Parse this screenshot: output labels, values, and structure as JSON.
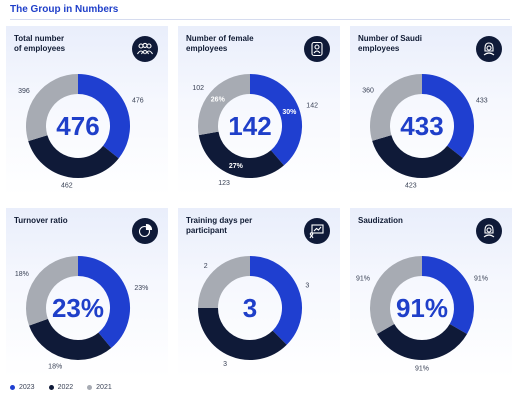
{
  "page": {
    "title": "The Group in Numbers"
  },
  "colors": {
    "2023": "#1f3fd0",
    "2022": "#0f1a38",
    "2021": "#a7abb3"
  },
  "legend": [
    {
      "label": "2023",
      "color": "#1f3fd0"
    },
    {
      "label": "2022",
      "color": "#0f1a38"
    },
    {
      "label": "2021",
      "color": "#a7abb3"
    }
  ],
  "chart_data": [
    {
      "type": "pie",
      "title": "Total number\nof employees",
      "icon": "people-group-icon",
      "center": "476",
      "series": [
        {
          "name": "2023",
          "value": 476,
          "label": "476"
        },
        {
          "name": "2022",
          "value": 462,
          "label": "462"
        },
        {
          "name": "2021",
          "value": 396,
          "label": "396"
        }
      ]
    },
    {
      "type": "pie",
      "title": "Number of female\nemployees",
      "icon": "female-employee-icon",
      "center": "142",
      "series": [
        {
          "name": "2023",
          "value": 142,
          "label": "142",
          "inner": "30%"
        },
        {
          "name": "2022",
          "value": 123,
          "label": "123",
          "inner": "27%"
        },
        {
          "name": "2021",
          "value": 102,
          "label": "102",
          "inner": "26%"
        }
      ]
    },
    {
      "type": "pie",
      "title": "Number of Saudi\nemployees",
      "icon": "saudi-employee-icon",
      "center": "433",
      "series": [
        {
          "name": "2023",
          "value": 433,
          "label": "433"
        },
        {
          "name": "2022",
          "value": 423,
          "label": "423"
        },
        {
          "name": "2021",
          "value": 360,
          "label": "360"
        }
      ]
    },
    {
      "type": "pie",
      "title": "Turnover ratio",
      "icon": "pie-chart-icon",
      "center": "23%",
      "series": [
        {
          "name": "2023",
          "value": 23,
          "label": "23%"
        },
        {
          "name": "2022",
          "value": 18,
          "label": "18%"
        },
        {
          "name": "2021",
          "value": 18,
          "label": "18%"
        }
      ]
    },
    {
      "type": "pie",
      "title": "Training days per\nparticipant",
      "icon": "presentation-board-icon",
      "center": "3",
      "series": [
        {
          "name": "2023",
          "value": 3,
          "label": "3"
        },
        {
          "name": "2022",
          "value": 3,
          "label": "3"
        },
        {
          "name": "2021",
          "value": 2,
          "label": "2"
        }
      ]
    },
    {
      "type": "pie",
      "title": "Saudization",
      "icon": "saudi-employee-icon",
      "center": "91%",
      "series": [
        {
          "name": "2023",
          "value": 91,
          "label": "91%"
        },
        {
          "name": "2022",
          "value": 91,
          "label": "91%"
        },
        {
          "name": "2021",
          "value": 91,
          "label": "91%"
        }
      ]
    }
  ]
}
